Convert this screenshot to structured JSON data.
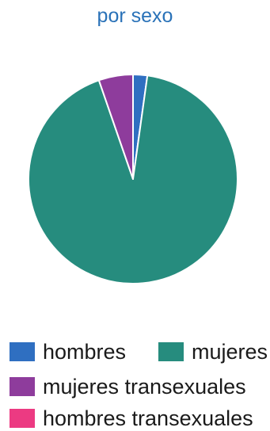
{
  "chart_data": {
    "type": "pie",
    "title": "por sexo",
    "categories": [
      "hombres",
      "mujeres",
      "mujeres transexuales",
      "hombres transexuales"
    ],
    "values": [
      2.2,
      92.5,
      5.3,
      0
    ],
    "colors": [
      "#2f6fc1",
      "#268c7e",
      "#8e3c9c",
      "#ec3a82"
    ],
    "legend": "bottom"
  }
}
